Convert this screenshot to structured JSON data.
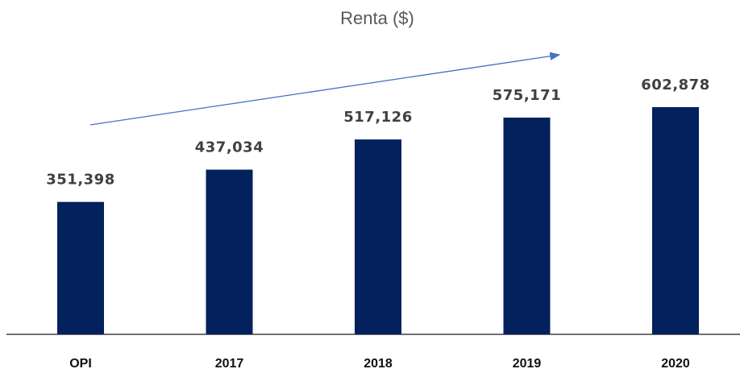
{
  "chart_data": {
    "type": "bar",
    "title": "Renta ($)",
    "categories": [
      "OPI",
      "2017",
      "2018",
      "2019",
      "2020"
    ],
    "values": [
      351398,
      437034,
      517126,
      575171,
      602878
    ],
    "value_labels": [
      "351,398",
      "437,034",
      "517,126",
      "575,171",
      "602,878"
    ],
    "color": "#03215c"
  }
}
